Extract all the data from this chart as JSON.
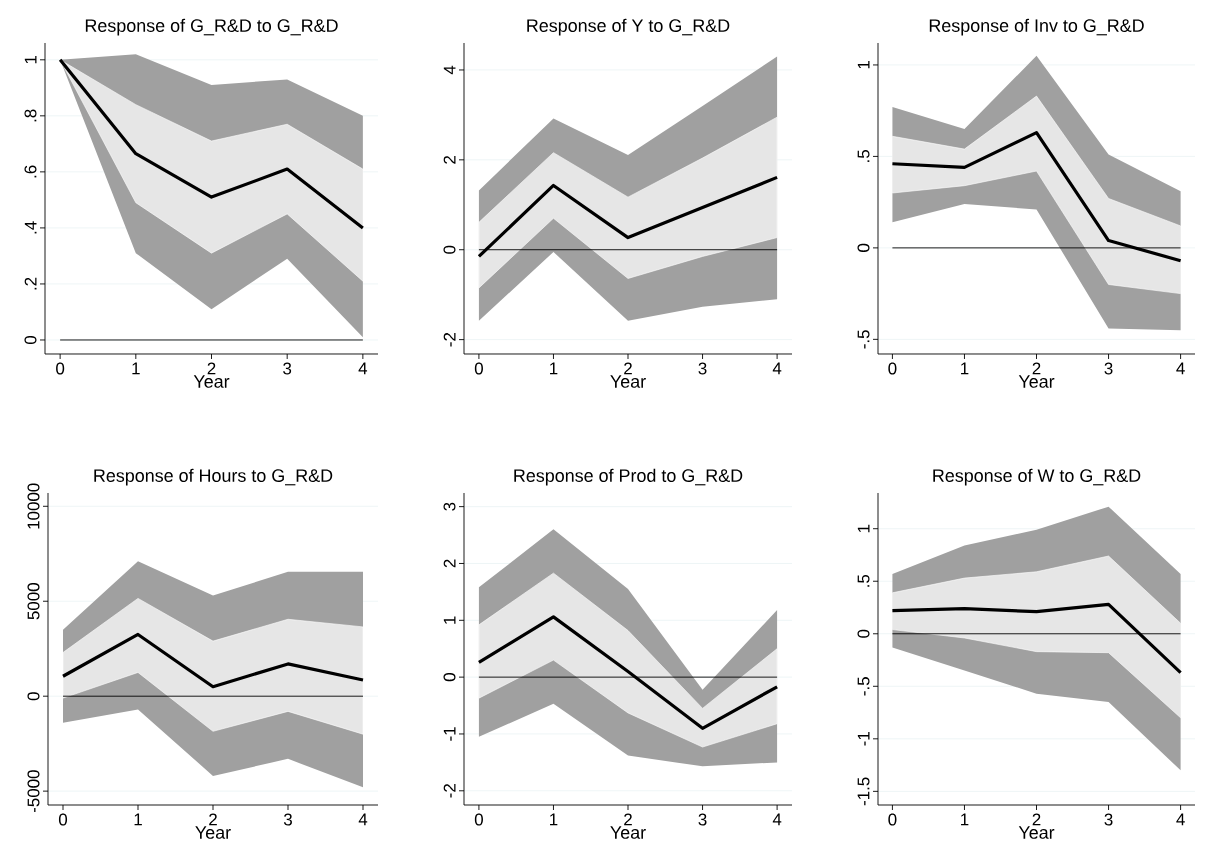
{
  "chart_data": [
    {
      "type": "line",
      "title": "Response of G_R&D to G_R&D",
      "xlabel": "Year",
      "x": [
        0,
        1,
        2,
        3,
        4
      ],
      "xlim": [
        -0.2,
        4.2
      ],
      "xticks": [
        0,
        1,
        2,
        3,
        4
      ],
      "ylim": [
        -0.05,
        1.06
      ],
      "yticks": [
        0,
        {
          "value": 0.2,
          "label": ".2"
        },
        {
          "value": 0.4,
          "label": ".4"
        },
        {
          "value": 0.6,
          "label": ".6"
        },
        {
          "value": 0.8,
          "label": ".8"
        },
        1
      ],
      "grid": "y",
      "ref_lines": [
        {
          "axis": "y",
          "value": 0,
          "color": "#000000"
        }
      ],
      "series": [
        {
          "color": "#a0a0a0",
          "values": [
            null,
            null,
            null,
            null,
            null
          ],
          "lower": [
            1.0,
            0.31,
            0.11,
            0.29,
            0.01
          ],
          "upper": [
            1.0,
            1.02,
            0.91,
            0.93,
            0.8
          ]
        },
        {
          "color": "#e6e6e6",
          "values": [
            null,
            null,
            null,
            null,
            null
          ],
          "lower": [
            1.0,
            0.49,
            0.31,
            0.45,
            0.21
          ],
          "upper": [
            1.0,
            0.84,
            0.71,
            0.77,
            0.61
          ]
        },
        {
          "color": "#000000",
          "values": [
            1.0,
            0.665,
            0.51,
            0.61,
            0.4
          ]
        }
      ]
    },
    {
      "type": "line",
      "title": "Response of Y to G_R&D",
      "xlabel": "Year",
      "x": [
        0,
        1,
        2,
        3,
        4
      ],
      "xlim": [
        -0.2,
        4.2
      ],
      "xticks": [
        0,
        1,
        2,
        3,
        4
      ],
      "ylim": [
        -2.32,
        4.6
      ],
      "yticks": [
        -2,
        0,
        2,
        4
      ],
      "grid": "y",
      "ref_lines": [
        {
          "axis": "y",
          "value": 0,
          "color": "#000000"
        }
      ],
      "series": [
        {
          "color": "#a0a0a0",
          "values": [
            null,
            null,
            null,
            null,
            null
          ],
          "lower": [
            -1.58,
            -0.05,
            -1.58,
            -1.27,
            -1.1
          ],
          "upper": [
            1.32,
            2.92,
            2.11,
            3.2,
            4.3
          ]
        },
        {
          "color": "#e6e6e6",
          "values": [
            null,
            null,
            null,
            null,
            null
          ],
          "lower": [
            -0.85,
            0.7,
            -0.64,
            -0.15,
            0.27
          ],
          "upper": [
            0.61,
            2.16,
            1.17,
            2.04,
            2.95
          ]
        },
        {
          "color": "#000000",
          "values": [
            -0.15,
            1.43,
            0.27,
            0.94,
            1.61
          ]
        }
      ]
    },
    {
      "type": "line",
      "title": "Response of Inv to G_R&D",
      "xlabel": "Year",
      "x": [
        0,
        1,
        2,
        3,
        4
      ],
      "xlim": [
        -0.2,
        4.2
      ],
      "xticks": [
        0,
        1,
        2,
        3,
        4
      ],
      "ylim": [
        -0.58,
        1.12
      ],
      "yticks": [
        {
          "value": -0.5,
          "label": "-.5"
        },
        0,
        {
          "value": 0.5,
          "label": ".5"
        },
        1
      ],
      "grid": "y",
      "ref_lines": [
        {
          "axis": "y",
          "value": 0,
          "color": "#000000"
        }
      ],
      "series": [
        {
          "color": "#a0a0a0",
          "values": [
            null,
            null,
            null,
            null,
            null
          ],
          "lower": [
            0.14,
            0.24,
            0.21,
            -0.44,
            -0.45
          ],
          "upper": [
            0.77,
            0.65,
            1.05,
            0.51,
            0.31
          ]
        },
        {
          "color": "#e6e6e6",
          "values": [
            null,
            null,
            null,
            null,
            null
          ],
          "lower": [
            0.3,
            0.34,
            0.42,
            -0.2,
            -0.25
          ],
          "upper": [
            0.61,
            0.54,
            0.83,
            0.27,
            0.12
          ]
        },
        {
          "color": "#000000",
          "values": [
            0.46,
            0.44,
            0.63,
            0.04,
            -0.07
          ]
        }
      ]
    },
    {
      "type": "line",
      "title": "Response of Hours to G_R&D",
      "xlabel": "Year",
      "x": [
        0,
        1,
        2,
        3,
        4
      ],
      "xlim": [
        -0.2,
        4.2
      ],
      "xticks": [
        0,
        1,
        2,
        3,
        4
      ],
      "ylim": [
        -5730,
        10700
      ],
      "yticks": [
        -5000,
        0,
        5000,
        10000
      ],
      "grid": "y",
      "ref_lines": [
        {
          "axis": "y",
          "value": 0,
          "color": "#000000"
        }
      ],
      "series": [
        {
          "color": "#a0a0a0",
          "values": [
            null,
            null,
            null,
            null,
            null
          ],
          "lower": [
            -1400,
            -700,
            -4200,
            -3300,
            -4800
          ],
          "upper": [
            3500,
            7100,
            5300,
            6550,
            6550
          ]
        },
        {
          "color": "#e6e6e6",
          "values": [
            null,
            null,
            null,
            null,
            null
          ],
          "lower": [
            -100,
            1250,
            -1850,
            -800,
            -2000
          ],
          "upper": [
            2300,
            5150,
            2900,
            4050,
            3650
          ]
        },
        {
          "color": "#000000",
          "values": [
            1050,
            3250,
            500,
            1700,
            850
          ]
        }
      ]
    },
    {
      "type": "line",
      "title": "Response of Prod to G_R&D",
      "xlabel": "Year",
      "x": [
        0,
        1,
        2,
        3,
        4
      ],
      "xlim": [
        -0.2,
        4.2
      ],
      "xticks": [
        0,
        1,
        2,
        3,
        4
      ],
      "ylim": [
        -2.25,
        3.24
      ],
      "yticks": [
        -2,
        -1,
        0,
        1,
        2,
        3
      ],
      "grid": "y",
      "ref_lines": [
        {
          "axis": "y",
          "value": 0,
          "color": "#000000"
        }
      ],
      "series": [
        {
          "color": "#a0a0a0",
          "values": [
            null,
            null,
            null,
            null,
            null
          ],
          "lower": [
            -1.05,
            -0.47,
            -1.38,
            -1.57,
            -1.5
          ],
          "upper": [
            1.58,
            2.6,
            1.55,
            -0.22,
            1.18
          ]
        },
        {
          "color": "#e6e6e6",
          "values": [
            null,
            null,
            null,
            null,
            null
          ],
          "lower": [
            -0.37,
            0.3,
            -0.63,
            -1.23,
            -0.82
          ],
          "upper": [
            0.92,
            1.83,
            0.82,
            -0.55,
            0.5
          ]
        },
        {
          "color": "#000000",
          "values": [
            0.26,
            1.06,
            0.1,
            -0.9,
            -0.17
          ]
        }
      ]
    },
    {
      "type": "line",
      "title": "Response of W to G_R&D",
      "xlabel": "Year",
      "x": [
        0,
        1,
        2,
        3,
        4
      ],
      "xlim": [
        -0.2,
        4.2
      ],
      "xticks": [
        0,
        1,
        2,
        3,
        4
      ],
      "ylim": [
        -1.63,
        1.34
      ],
      "yticks": [
        {
          "value": -1.5,
          "label": "-1.5"
        },
        -1,
        {
          "value": -0.5,
          "label": "-.5"
        },
        0,
        {
          "value": 0.5,
          "label": ".5"
        },
        1
      ],
      "grid": "y",
      "ref_lines": [
        {
          "axis": "y",
          "value": 0,
          "color": "#000000"
        }
      ],
      "series": [
        {
          "color": "#a0a0a0",
          "values": [
            null,
            null,
            null,
            null,
            null
          ],
          "lower": [
            -0.13,
            -0.35,
            -0.57,
            -0.65,
            -1.3
          ],
          "upper": [
            0.57,
            0.84,
            0.99,
            1.21,
            0.57
          ]
        },
        {
          "color": "#e6e6e6",
          "values": [
            null,
            null,
            null,
            null,
            null
          ],
          "lower": [
            0.04,
            -0.04,
            -0.17,
            -0.18,
            -0.8
          ],
          "upper": [
            0.39,
            0.53,
            0.59,
            0.74,
            0.1
          ]
        },
        {
          "color": "#000000",
          "values": [
            0.22,
            0.24,
            0.21,
            0.28,
            -0.37
          ]
        }
      ]
    }
  ]
}
